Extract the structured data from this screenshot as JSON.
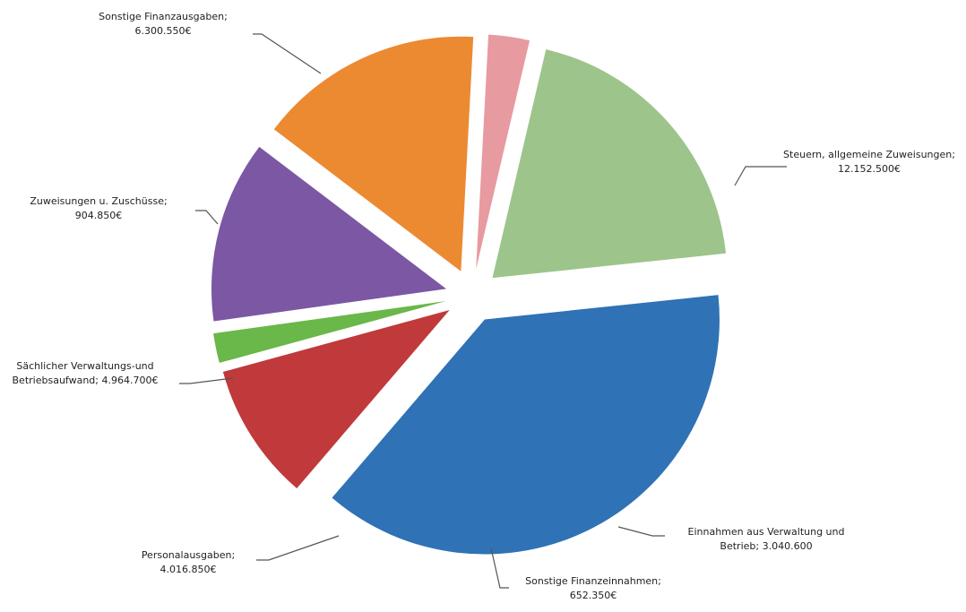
{
  "chart_data": {
    "type": "pie",
    "exploded": true,
    "title": "",
    "slices": [
      {
        "name": "Steuern, allgemeine Zuweisungen",
        "label_line1": "Steuern, allgemeine Zuweisungen;",
        "label_line2": "12.152.500€",
        "value": 12152500,
        "color": "#2f72b5"
      },
      {
        "name": "Einnahmen aus Verwaltung und Betrieb",
        "label_line1": "Einnahmen aus Verwaltung und",
        "label_line2": "Betrieb; 3.040.600",
        "value": 3040600,
        "color": "#c0393b"
      },
      {
        "name": "Sonstige Finanzeinnahmen",
        "label_line1": "Sonstige Finanzeinnahmen;",
        "label_line2": "652.350€",
        "value": 652350,
        "color": "#6ab74a"
      },
      {
        "name": "Personalausgaben",
        "label_line1": "Personalausgaben;",
        "label_line2": "4.016.850€",
        "value": 4016850,
        "color": "#7c57a3"
      },
      {
        "name": "Sächlicher Verwaltungs-und Betriebsaufwand",
        "label_line1": "Sächlicher Verwaltungs-und",
        "label_line2": "Betriebsaufwand; 4.964.700€",
        "value": 4964700,
        "color": "#ec8a32"
      },
      {
        "name": "Zuweisungen u. Zuschüsse",
        "label_line1": "Zuweisungen u. Zuschüsse;",
        "label_line2": "904.850€",
        "value": 904850,
        "color": "#e79a9f"
      },
      {
        "name": "Sonstige Finanzausgaben",
        "label_line1": "Sonstige Finanzausgaben;",
        "label_line2": "6.300.550€",
        "value": 6300550,
        "color": "#9dc48b"
      }
    ]
  }
}
